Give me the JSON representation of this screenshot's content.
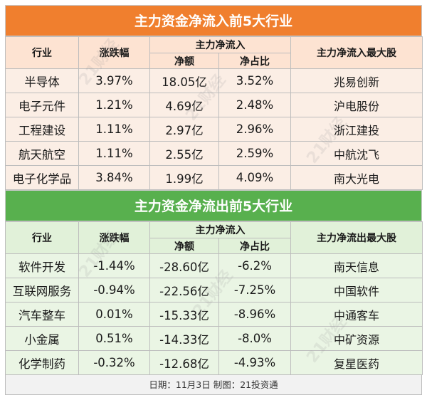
{
  "inflow": {
    "title": "主力资金净流入前5大行业",
    "headers": {
      "industry": "行业",
      "change": "涨跌幅",
      "net_group": "主力净流入",
      "net_amount": "净额",
      "net_ratio": "净占比",
      "top_stock": "主力净流入最大股"
    },
    "rows": [
      {
        "industry": "半导体",
        "change": "3.97%",
        "net_amount": "18.05亿",
        "net_ratio": "3.52%",
        "top_stock": "兆易创新"
      },
      {
        "industry": "电子元件",
        "change": "1.21%",
        "net_amount": "4.69亿",
        "net_ratio": "2.48%",
        "top_stock": "沪电股份"
      },
      {
        "industry": "工程建设",
        "change": "1.11%",
        "net_amount": "2.97亿",
        "net_ratio": "2.96%",
        "top_stock": "浙江建投"
      },
      {
        "industry": "航天航空",
        "change": "1.11%",
        "net_amount": "2.55亿",
        "net_ratio": "2.59%",
        "top_stock": "中航沈飞"
      },
      {
        "industry": "电子化学品",
        "change": "3.84%",
        "net_amount": "1.99亿",
        "net_ratio": "4.09%",
        "top_stock": "南大光电"
      }
    ]
  },
  "outflow": {
    "title": "主力资金净流出前5大行业",
    "headers": {
      "industry": "行业",
      "change": "涨跌幅",
      "net_group": "主力净流入",
      "net_amount": "净额",
      "net_ratio": "净占比",
      "top_stock": "主力净流出最大股"
    },
    "rows": [
      {
        "industry": "软件开发",
        "change": "-1.44%",
        "net_amount": "-28.60亿",
        "net_ratio": "-6.2%",
        "top_stock": "南天信息"
      },
      {
        "industry": "互联网服务",
        "change": "-0.94%",
        "net_amount": "-22.56亿",
        "net_ratio": "-7.25%",
        "top_stock": "中国软件"
      },
      {
        "industry": "汽车整车",
        "change": "0.01%",
        "net_amount": "-15.33亿",
        "net_ratio": "-8.96%",
        "top_stock": "中通客车"
      },
      {
        "industry": "小金属",
        "change": "0.51%",
        "net_amount": "-14.33亿",
        "net_ratio": "-8.0%",
        "top_stock": "中矿资源"
      },
      {
        "industry": "化学制药",
        "change": "-0.32%",
        "net_amount": "-12.68亿",
        "net_ratio": "-4.93%",
        "top_stock": "复星医药"
      }
    ]
  },
  "footer": "日期：11月3日  制图：21投资通",
  "watermark": "21财经",
  "colors": {
    "inflow_banner": "#f07f2e",
    "outflow_banner": "#58b04e",
    "inflow_header": "#fde3d2",
    "outflow_header": "#e1f1d9"
  }
}
